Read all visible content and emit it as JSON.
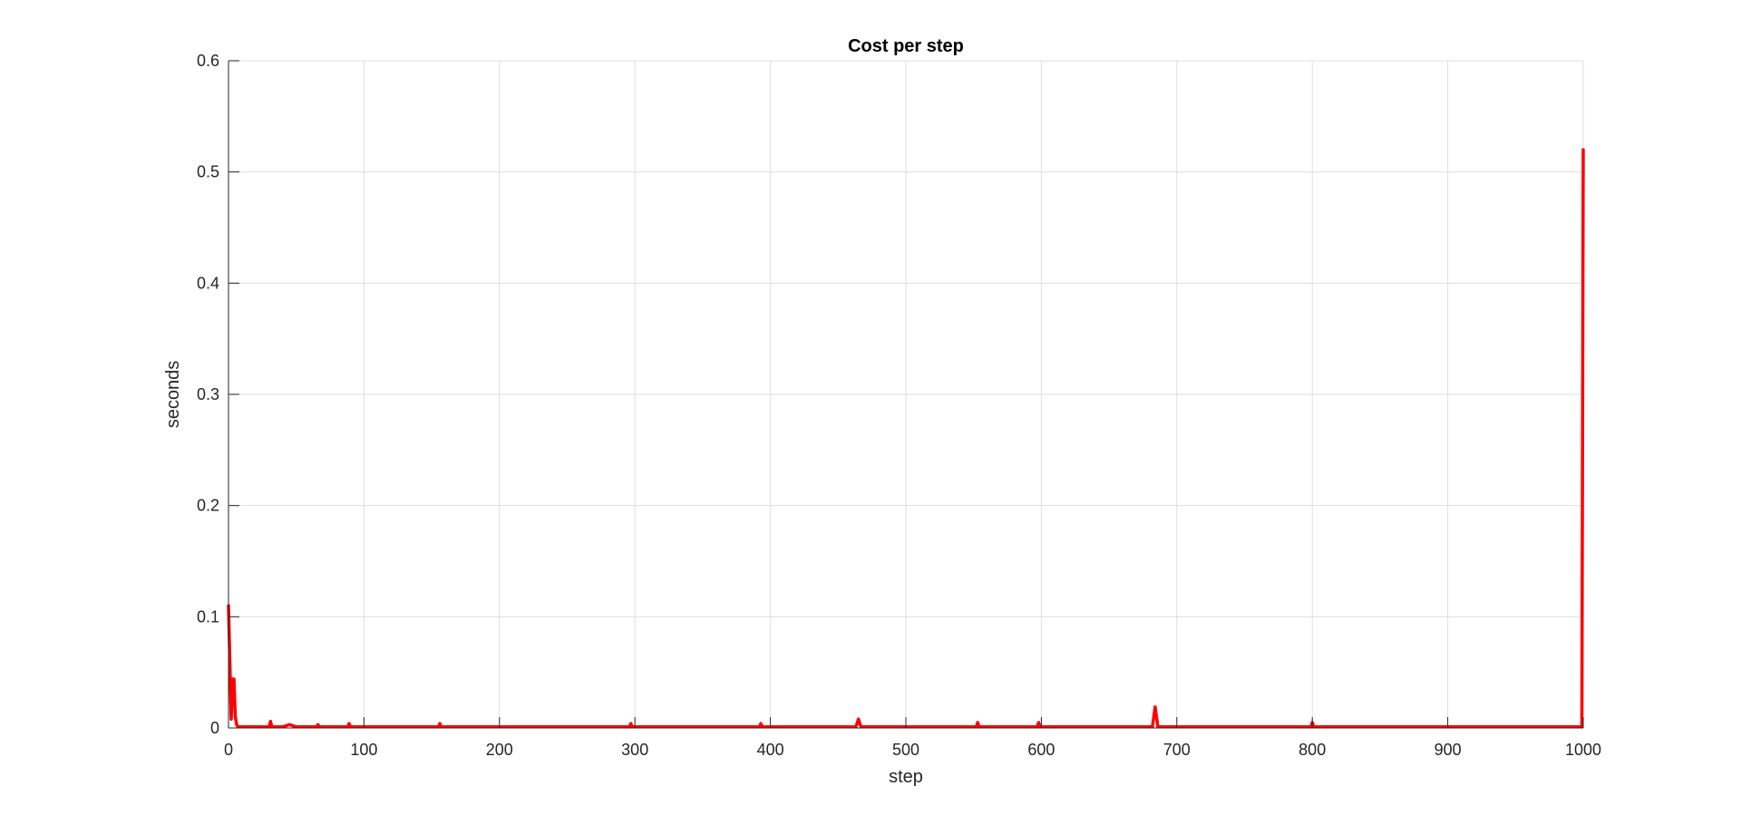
{
  "chart_data": {
    "type": "line",
    "title": "Cost per step",
    "xlabel": "step",
    "ylabel": "seconds",
    "xlim": [
      0,
      1000
    ],
    "ylim": [
      0,
      0.6
    ],
    "xticks": [
      0,
      100,
      200,
      300,
      400,
      500,
      600,
      700,
      800,
      900,
      1000
    ],
    "yticks": [
      0,
      0.1,
      0.2,
      0.3,
      0.4,
      0.5,
      0.6
    ],
    "xtick_labels": [
      "0",
      "100",
      "200",
      "300",
      "400",
      "500",
      "600",
      "700",
      "800",
      "900",
      "1000"
    ],
    "ytick_labels": [
      "0",
      "0.1",
      "0.2",
      "0.3",
      "0.4",
      "0.5",
      "0.6"
    ],
    "grid": true,
    "series": [
      {
        "color": "#ff0000",
        "x": [
          0,
          1,
          2,
          3,
          4,
          5,
          6,
          7,
          8,
          10,
          20,
          25,
          30,
          31,
          32,
          40,
          45,
          50,
          60,
          65,
          66,
          67,
          80,
          88,
          89,
          90,
          100,
          120,
          140,
          155,
          156,
          157,
          180,
          200,
          250,
          296,
          297,
          298,
          320,
          350,
          380,
          392,
          393,
          394,
          420,
          450,
          463,
          464,
          465,
          466,
          467,
          480,
          500,
          530,
          552,
          553,
          554,
          570,
          597,
          598,
          599,
          620,
          650,
          670,
          682,
          683,
          684,
          685,
          686,
          700,
          730,
          760,
          799,
          800,
          801,
          830,
          860,
          900,
          950,
          999,
          1000
        ],
        "y": [
          0.11,
          0.06,
          0.008,
          0.044,
          0.044,
          0.01,
          0.003,
          0.001,
          0.001,
          0.001,
          0.001,
          0.001,
          0.001,
          0.006,
          0.001,
          0.001,
          0.003,
          0.001,
          0.001,
          0.001,
          0.003,
          0.001,
          0.001,
          0.001,
          0.004,
          0.001,
          0.001,
          0.001,
          0.001,
          0.001,
          0.004,
          0.001,
          0.001,
          0.001,
          0.001,
          0.001,
          0.004,
          0.001,
          0.001,
          0.001,
          0.001,
          0.001,
          0.004,
          0.001,
          0.001,
          0.001,
          0.001,
          0.004,
          0.008,
          0.004,
          0.001,
          0.001,
          0.001,
          0.001,
          0.001,
          0.005,
          0.001,
          0.001,
          0.001,
          0.005,
          0.001,
          0.001,
          0.001,
          0.001,
          0.001,
          0.01,
          0.019,
          0.01,
          0.001,
          0.001,
          0.001,
          0.001,
          0.001,
          0.005,
          0.001,
          0.001,
          0.001,
          0.001,
          0.001,
          0.001,
          0.52
        ]
      }
    ]
  }
}
